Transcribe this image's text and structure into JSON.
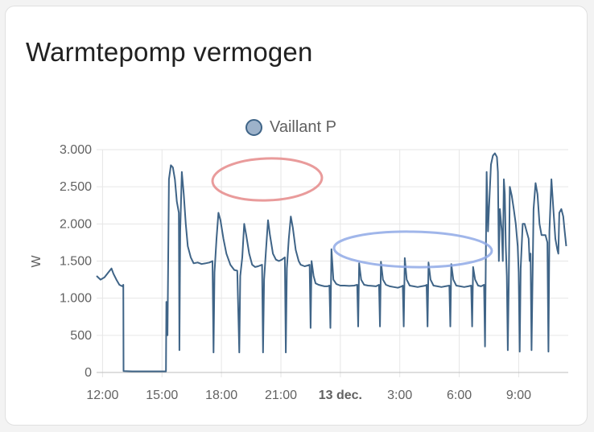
{
  "card": {
    "title": "Warmtepomp vermogen"
  },
  "colors": {
    "series": "#3f6487",
    "legend_fill": "#9db2ca",
    "grid": "#e6e6e6",
    "red_mark": "#e58a8a",
    "blue_mark": "#8fa9e6"
  },
  "chart_data": {
    "type": "line",
    "title": "Warmtepomp vermogen",
    "ylabel": "W",
    "ylim": [
      0,
      3000
    ],
    "xlim": [
      11.7,
      35.5
    ],
    "grid": true,
    "legend_position": "top-center",
    "y_ticks": [
      {
        "value": 0,
        "label": "0"
      },
      {
        "value": 500,
        "label": "500"
      },
      {
        "value": 1000,
        "label": "1.000"
      },
      {
        "value": 1500,
        "label": "1.500"
      },
      {
        "value": 2000,
        "label": "2.000"
      },
      {
        "value": 2500,
        "label": "2.500"
      },
      {
        "value": 3000,
        "label": "3.000"
      }
    ],
    "x_ticks": [
      {
        "value": 12,
        "label": "12:00",
        "major": false
      },
      {
        "value": 15,
        "label": "15:00",
        "major": false
      },
      {
        "value": 18,
        "label": "18:00",
        "major": false
      },
      {
        "value": 21,
        "label": "21:00",
        "major": false
      },
      {
        "value": 24,
        "label": "13 dec.",
        "major": true
      },
      {
        "value": 27,
        "label": "3:00",
        "major": false
      },
      {
        "value": 30,
        "label": "6:00",
        "major": false
      },
      {
        "value": 33,
        "label": "9:00",
        "major": false
      }
    ],
    "x_unit": "hours since 12 dec. 00:00",
    "series": [
      {
        "name": "Vaillant P",
        "points": [
          [
            11.7,
            1300
          ],
          [
            11.9,
            1250
          ],
          [
            12.1,
            1280
          ],
          [
            12.3,
            1350
          ],
          [
            12.45,
            1400
          ],
          [
            12.55,
            1330
          ],
          [
            12.7,
            1250
          ],
          [
            12.85,
            1180
          ],
          [
            13.0,
            1160
          ],
          [
            13.05,
            1180
          ],
          [
            13.06,
            20
          ],
          [
            13.5,
            15
          ],
          [
            14.0,
            15
          ],
          [
            14.5,
            15
          ],
          [
            15.0,
            15
          ],
          [
            15.2,
            15
          ],
          [
            15.22,
            950
          ],
          [
            15.28,
            500
          ],
          [
            15.35,
            2600
          ],
          [
            15.45,
            2790
          ],
          [
            15.55,
            2760
          ],
          [
            15.65,
            2600
          ],
          [
            15.75,
            2300
          ],
          [
            15.85,
            2150
          ],
          [
            15.88,
            300
          ],
          [
            15.92,
            1900
          ],
          [
            16.0,
            2700
          ],
          [
            16.1,
            2400
          ],
          [
            16.2,
            2000
          ],
          [
            16.3,
            1700
          ],
          [
            16.45,
            1550
          ],
          [
            16.6,
            1470
          ],
          [
            16.8,
            1480
          ],
          [
            17.0,
            1460
          ],
          [
            17.2,
            1470
          ],
          [
            17.4,
            1480
          ],
          [
            17.55,
            1500
          ],
          [
            17.6,
            270
          ],
          [
            17.65,
            1350
          ],
          [
            17.75,
            1800
          ],
          [
            17.85,
            2150
          ],
          [
            17.95,
            2050
          ],
          [
            18.1,
            1800
          ],
          [
            18.25,
            1600
          ],
          [
            18.45,
            1450
          ],
          [
            18.65,
            1380
          ],
          [
            18.8,
            1370
          ],
          [
            18.9,
            270
          ],
          [
            18.95,
            1300
          ],
          [
            19.05,
            1550
          ],
          [
            19.15,
            2000
          ],
          [
            19.25,
            1850
          ],
          [
            19.4,
            1600
          ],
          [
            19.55,
            1450
          ],
          [
            19.7,
            1420
          ],
          [
            19.85,
            1430
          ],
          [
            20.05,
            1450
          ],
          [
            20.1,
            270
          ],
          [
            20.15,
            1250
          ],
          [
            20.25,
            1650
          ],
          [
            20.35,
            2050
          ],
          [
            20.45,
            1850
          ],
          [
            20.6,
            1600
          ],
          [
            20.75,
            1520
          ],
          [
            20.9,
            1500
          ],
          [
            21.05,
            1520
          ],
          [
            21.2,
            1550
          ],
          [
            21.25,
            270
          ],
          [
            21.3,
            1400
          ],
          [
            21.4,
            1800
          ],
          [
            21.5,
            2100
          ],
          [
            21.6,
            1950
          ],
          [
            21.75,
            1650
          ],
          [
            21.9,
            1500
          ],
          [
            22.0,
            1450
          ],
          [
            22.2,
            1430
          ],
          [
            22.35,
            1440
          ],
          [
            22.45,
            1450
          ],
          [
            22.5,
            600
          ],
          [
            22.55,
            1500
          ],
          [
            22.65,
            1300
          ],
          [
            22.75,
            1200
          ],
          [
            22.9,
            1180
          ],
          [
            23.05,
            1170
          ],
          [
            23.2,
            1160
          ],
          [
            23.35,
            1160
          ],
          [
            23.45,
            1170
          ],
          [
            23.5,
            600
          ],
          [
            23.55,
            1660
          ],
          [
            23.65,
            1250
          ],
          [
            23.8,
            1190
          ],
          [
            24.0,
            1170
          ],
          [
            24.2,
            1170
          ],
          [
            24.45,
            1165
          ],
          [
            24.7,
            1170
          ],
          [
            24.85,
            1180
          ],
          [
            24.9,
            620
          ],
          [
            24.95,
            1470
          ],
          [
            25.05,
            1250
          ],
          [
            25.2,
            1180
          ],
          [
            25.4,
            1170
          ],
          [
            25.6,
            1165
          ],
          [
            25.8,
            1160
          ],
          [
            25.95,
            1180
          ],
          [
            26.0,
            620
          ],
          [
            26.05,
            1490
          ],
          [
            26.15,
            1250
          ],
          [
            26.3,
            1180
          ],
          [
            26.5,
            1160
          ],
          [
            26.7,
            1150
          ],
          [
            26.9,
            1140
          ],
          [
            27.1,
            1160
          ],
          [
            27.15,
            1170
          ],
          [
            27.2,
            620
          ],
          [
            27.25,
            1540
          ],
          [
            27.35,
            1250
          ],
          [
            27.5,
            1170
          ],
          [
            27.7,
            1160
          ],
          [
            27.9,
            1150
          ],
          [
            28.1,
            1160
          ],
          [
            28.3,
            1170
          ],
          [
            28.35,
            1180
          ],
          [
            28.4,
            620
          ],
          [
            28.45,
            1480
          ],
          [
            28.55,
            1250
          ],
          [
            28.7,
            1170
          ],
          [
            28.9,
            1160
          ],
          [
            29.1,
            1150
          ],
          [
            29.3,
            1160
          ],
          [
            29.5,
            1170
          ],
          [
            29.55,
            620
          ],
          [
            29.6,
            1460
          ],
          [
            29.7,
            1250
          ],
          [
            29.85,
            1170
          ],
          [
            30.05,
            1160
          ],
          [
            30.25,
            1150
          ],
          [
            30.45,
            1160
          ],
          [
            30.6,
            1170
          ],
          [
            30.65,
            620
          ],
          [
            30.7,
            1420
          ],
          [
            30.8,
            1250
          ],
          [
            30.95,
            1170
          ],
          [
            31.1,
            1160
          ],
          [
            31.25,
            1180
          ],
          [
            31.3,
            350
          ],
          [
            31.38,
            2700
          ],
          [
            31.45,
            1900
          ],
          [
            31.5,
            2200
          ],
          [
            31.6,
            2800
          ],
          [
            31.7,
            2920
          ],
          [
            31.8,
            2950
          ],
          [
            31.9,
            2900
          ],
          [
            31.95,
            2700
          ],
          [
            32.0,
            1500
          ],
          [
            32.05,
            2200
          ],
          [
            32.15,
            1900
          ],
          [
            32.2,
            1500
          ],
          [
            32.25,
            2600
          ],
          [
            32.3,
            2400
          ],
          [
            32.35,
            1700
          ],
          [
            32.4,
            1300
          ],
          [
            32.45,
            300
          ],
          [
            32.5,
            1200
          ],
          [
            32.55,
            2500
          ],
          [
            32.65,
            2380
          ],
          [
            32.75,
            2200
          ],
          [
            32.85,
            2000
          ],
          [
            32.95,
            1700
          ],
          [
            33.0,
            1350
          ],
          [
            33.05,
            280
          ],
          [
            33.1,
            1400
          ],
          [
            33.2,
            2000
          ],
          [
            33.3,
            2000
          ],
          [
            33.4,
            1900
          ],
          [
            33.5,
            1800
          ],
          [
            33.55,
            1500
          ],
          [
            33.6,
            1600
          ],
          [
            33.65,
            300
          ],
          [
            33.75,
            2200
          ],
          [
            33.85,
            2550
          ],
          [
            33.95,
            2400
          ],
          [
            34.05,
            2000
          ],
          [
            34.15,
            1850
          ],
          [
            34.25,
            1850
          ],
          [
            34.35,
            1850
          ],
          [
            34.45,
            1750
          ],
          [
            34.5,
            280
          ],
          [
            34.55,
            1900
          ],
          [
            34.65,
            2600
          ],
          [
            34.75,
            2200
          ],
          [
            34.85,
            1800
          ],
          [
            34.95,
            1650
          ],
          [
            35.0,
            1600
          ],
          [
            35.05,
            2150
          ],
          [
            35.15,
            2200
          ],
          [
            35.25,
            2100
          ],
          [
            35.3,
            1950
          ],
          [
            35.4,
            1700
          ]
        ]
      }
    ]
  }
}
